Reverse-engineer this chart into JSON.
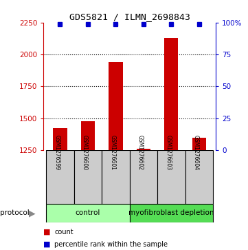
{
  "title": "GDS5821 / ILMN_2698843",
  "samples": [
    "GSM1276599",
    "GSM1276600",
    "GSM1276601",
    "GSM1276602",
    "GSM1276603",
    "GSM1276604"
  ],
  "counts": [
    1420,
    1475,
    1940,
    1260,
    2130,
    1345
  ],
  "percentiles": [
    99,
    99,
    99,
    99,
    99,
    99
  ],
  "ylim_left": [
    1250,
    2250
  ],
  "ylim_right": [
    0,
    100
  ],
  "yticks_left": [
    1250,
    1500,
    1750,
    2000,
    2250
  ],
  "yticks_right": [
    0,
    25,
    50,
    75,
    100
  ],
  "ytick_labels_right": [
    "0",
    "25",
    "50",
    "75",
    "100%"
  ],
  "grid_lines": [
    1500,
    1750,
    2000
  ],
  "protocol_labels": [
    "control",
    "myofibroblast depletion"
  ],
  "bar_color": "#cc0000",
  "dot_color": "#0000cc",
  "control_color": "#aaffaa",
  "depletion_color": "#55dd55",
  "sample_box_color": "#cccccc",
  "legend_count_color": "#cc0000",
  "legend_pct_color": "#0000cc",
  "bar_width": 0.5
}
